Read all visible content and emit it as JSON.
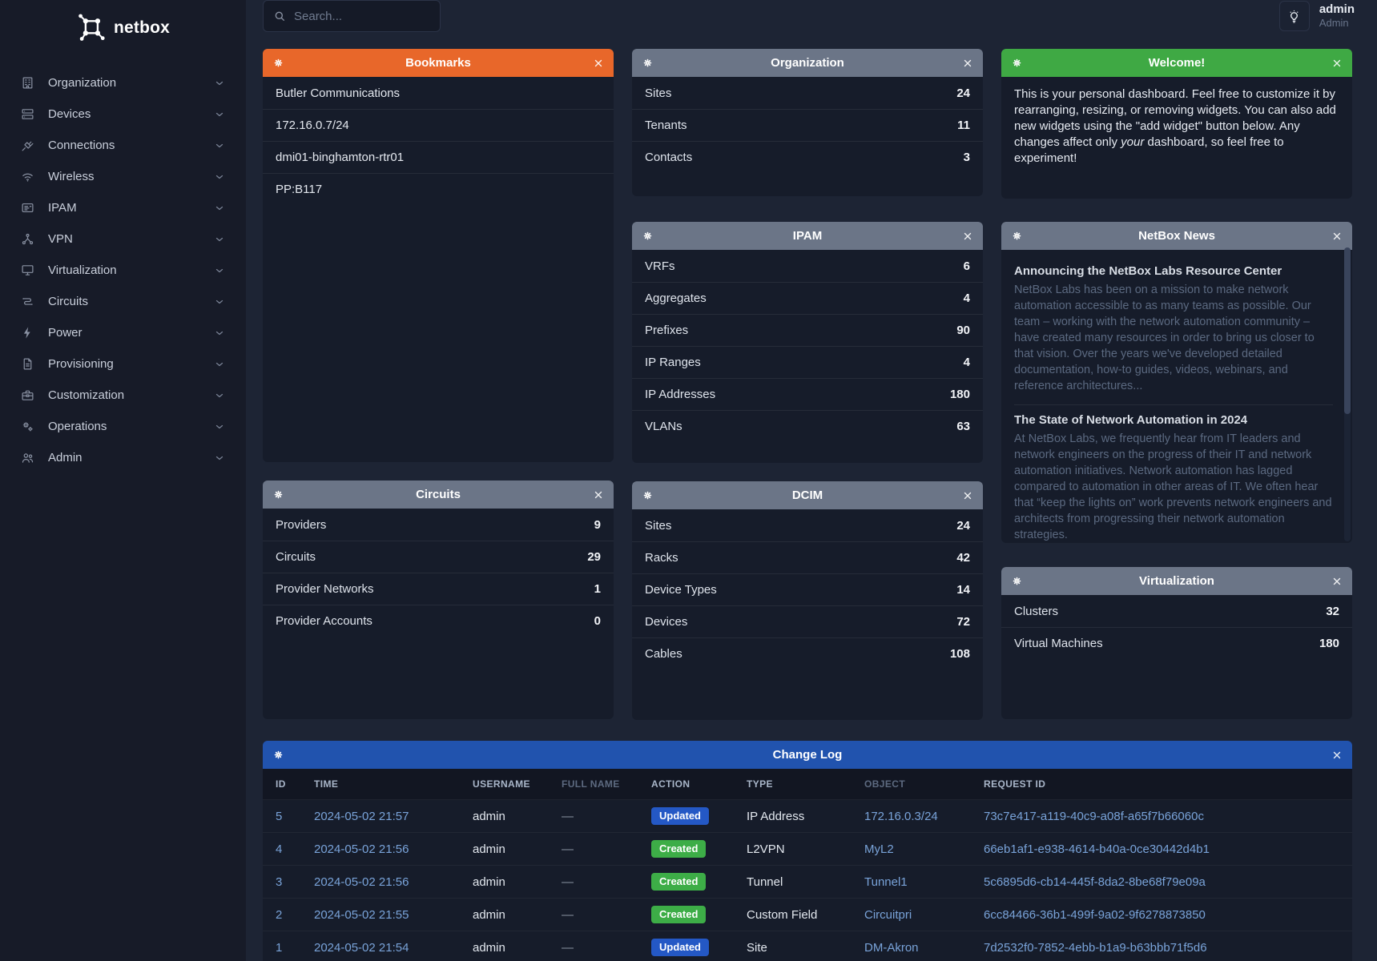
{
  "app": {
    "logo_text": "netbox"
  },
  "topbar": {
    "search_placeholder": "Search...",
    "user": {
      "username": "admin",
      "role": "Admin"
    }
  },
  "sidebar": {
    "items": [
      {
        "icon": "building-icon",
        "label": "Organization"
      },
      {
        "icon": "server-icon",
        "label": "Devices"
      },
      {
        "icon": "cable-icon",
        "label": "Connections"
      },
      {
        "icon": "wifi-icon",
        "label": "Wireless"
      },
      {
        "icon": "address-card-icon",
        "label": "IPAM"
      },
      {
        "icon": "network-icon",
        "label": "VPN"
      },
      {
        "icon": "monitor-icon",
        "label": "Virtualization"
      },
      {
        "icon": "circuit-icon",
        "label": "Circuits"
      },
      {
        "icon": "bolt-icon",
        "label": "Power"
      },
      {
        "icon": "document-icon",
        "label": "Provisioning"
      },
      {
        "icon": "toolbox-icon",
        "label": "Customization"
      },
      {
        "icon": "gears-icon",
        "label": "Operations"
      },
      {
        "icon": "users-icon",
        "label": "Admin"
      }
    ]
  },
  "widgets": {
    "bookmarks": {
      "title": "Bookmarks",
      "header_color": "#e8672a",
      "items": [
        "Butler Communications",
        "172.16.0.7/24",
        "dmi01-binghamton-rtr01",
        "PP:B117"
      ]
    },
    "organization": {
      "title": "Organization",
      "header_color": "#6b7587",
      "stats": [
        {
          "label": "Sites",
          "value": "24"
        },
        {
          "label": "Tenants",
          "value": "11"
        },
        {
          "label": "Contacts",
          "value": "3"
        }
      ]
    },
    "ipam": {
      "title": "IPAM",
      "header_color": "#6b7587",
      "stats": [
        {
          "label": "VRFs",
          "value": "6"
        },
        {
          "label": "Aggregates",
          "value": "4"
        },
        {
          "label": "Prefixes",
          "value": "90"
        },
        {
          "label": "IP Ranges",
          "value": "4"
        },
        {
          "label": "IP Addresses",
          "value": "180"
        },
        {
          "label": "VLANs",
          "value": "63"
        }
      ]
    },
    "circuits": {
      "title": "Circuits",
      "header_color": "#6b7587",
      "stats": [
        {
          "label": "Providers",
          "value": "9"
        },
        {
          "label": "Circuits",
          "value": "29"
        },
        {
          "label": "Provider Networks",
          "value": "1"
        },
        {
          "label": "Provider Accounts",
          "value": "0"
        }
      ]
    },
    "dcim": {
      "title": "DCIM",
      "header_color": "#6b7587",
      "stats": [
        {
          "label": "Sites",
          "value": "24"
        },
        {
          "label": "Racks",
          "value": "42"
        },
        {
          "label": "Device Types",
          "value": "14"
        },
        {
          "label": "Devices",
          "value": "72"
        },
        {
          "label": "Cables",
          "value": "108"
        }
      ]
    },
    "virtualization": {
      "title": "Virtualization",
      "header_color": "#6b7587",
      "stats": [
        {
          "label": "Clusters",
          "value": "32"
        },
        {
          "label": "Virtual Machines",
          "value": "180"
        }
      ]
    },
    "welcome": {
      "title": "Welcome!",
      "header_color": "#3fa944",
      "text_before": "This is your personal dashboard. Feel free to customize it by rearranging, resizing, or removing widgets. You can also add new widgets using the \"add widget\" button below. Any changes affect only ",
      "text_italic": "your",
      "text_after": " dashboard, so feel free to experiment!"
    },
    "news": {
      "title": "NetBox News",
      "header_color": "#6b7587",
      "articles": [
        {
          "headline": "Announcing the NetBox Labs Resource Center",
          "body": "NetBox Labs has been on a mission to make network automation accessible to as many teams as possible. Our team – working with the network automation community – have created many resources in order to bring us closer to that vision. Over the years we've developed detailed documentation, how-to guides, videos, webinars, and reference architectures..."
        },
        {
          "headline": "The State of Network Automation in 2024",
          "body": "At NetBox Labs, we frequently hear from IT leaders and network engineers on the progress of their IT and network automation initiatives. Network automation has lagged compared to automation in other areas of IT. We often hear that “keep the lights on” work prevents network engineers and architects from progressing their network automation strategies."
        }
      ]
    },
    "changelog": {
      "title": "Change Log",
      "header_color": "#2153ae",
      "columns": [
        {
          "label": "ID",
          "muted": false
        },
        {
          "label": "TIME",
          "muted": false
        },
        {
          "label": "USERNAME",
          "muted": false
        },
        {
          "label": "FULL NAME",
          "muted": true
        },
        {
          "label": "ACTION",
          "muted": false
        },
        {
          "label": "TYPE",
          "muted": false
        },
        {
          "label": "OBJECT",
          "muted": true
        },
        {
          "label": "REQUEST ID",
          "muted": false
        }
      ],
      "rows": [
        {
          "id": "5",
          "time": "2024-05-02 21:57",
          "username": "admin",
          "full_name": "—",
          "action": "Updated",
          "action_color": "#2458c5",
          "type": "IP Address",
          "object": "172.16.0.3/24",
          "request_id": "73c7e417-a119-40c9-a08f-a65f7b66060c"
        },
        {
          "id": "4",
          "time": "2024-05-02 21:56",
          "username": "admin",
          "full_name": "—",
          "action": "Created",
          "action_color": "#3dad47",
          "type": "L2VPN",
          "object": "MyL2",
          "request_id": "66eb1af1-e938-4614-b40a-0ce30442d4b1"
        },
        {
          "id": "3",
          "time": "2024-05-02 21:56",
          "username": "admin",
          "full_name": "—",
          "action": "Created",
          "action_color": "#3dad47",
          "type": "Tunnel",
          "object": "Tunnel1",
          "request_id": "5c6895d6-cb14-445f-8da2-8be68f79e09a"
        },
        {
          "id": "2",
          "time": "2024-05-02 21:55",
          "username": "admin",
          "full_name": "—",
          "action": "Created",
          "action_color": "#3dad47",
          "type": "Custom Field",
          "object": "Circuitpri",
          "request_id": "6cc84466-36b1-499f-9a02-9f6278873850"
        },
        {
          "id": "1",
          "time": "2024-05-02 21:54",
          "username": "admin",
          "full_name": "—",
          "action": "Updated",
          "action_color": "#2458c5",
          "type": "Site",
          "object": "DM-Akron",
          "request_id": "7d2532f0-7852-4ebb-b1a9-b63bbb71f5d6"
        }
      ]
    }
  },
  "colors": {
    "page_bg": "#1d2434",
    "sidebar_bg": "#171b28",
    "card_bg": "#161c2a",
    "accent_orange": "#e8672a",
    "accent_green": "#3fa944",
    "accent_blue": "#2153ae",
    "link_blue": "#79a3d9"
  }
}
